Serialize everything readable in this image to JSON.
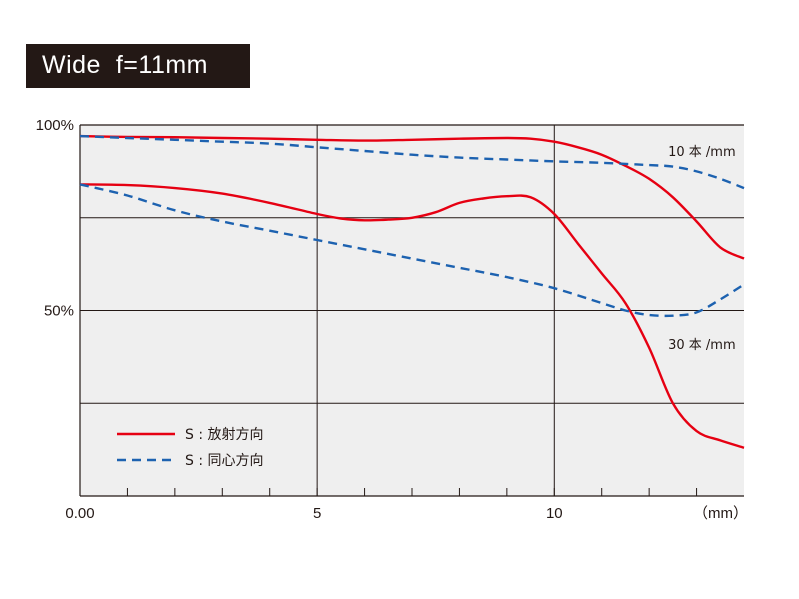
{
  "chart_data": {
    "type": "line",
    "title": "Wide  f=11mm",
    "x_unit_label": "（mm）",
    "xlim": [
      0,
      14
    ],
    "ylim": [
      0,
      100
    ],
    "x_ticks": [
      0,
      5,
      10
    ],
    "x_tick_labels": [
      "0.00",
      "5",
      "10"
    ],
    "y_ticks": [
      50,
      100
    ],
    "y_tick_labels": [
      "50%",
      "100%"
    ],
    "grid": true,
    "legend_position": "bottom-left",
    "legend": [
      {
        "label": "S : 放射方向",
        "style": "solid",
        "color": "#e60012"
      },
      {
        "label": "S : 同心方向",
        "style": "dashed",
        "color": "#1d62b0"
      }
    ],
    "annotations": [
      {
        "text": "10 本 /mm",
        "x": 12.4,
        "y": 93
      },
      {
        "text": "30 本 /mm",
        "x": 12.4,
        "y": 41
      }
    ],
    "series": [
      {
        "style": "solid",
        "frequency": "10 本 /mm",
        "x": [
          0,
          1,
          2,
          3,
          4,
          5,
          6,
          7,
          8,
          9,
          9.5,
          10,
          10.5,
          11,
          11.5,
          12,
          12.5,
          13,
          13.5,
          14
        ],
        "y": [
          97,
          96.8,
          96.7,
          96.5,
          96.3,
          96,
          95.8,
          96,
          96.3,
          96.5,
          96.3,
          95.5,
          94,
          92,
          89,
          85.5,
          80.5,
          74,
          67,
          64
        ]
      },
      {
        "style": "dashed",
        "frequency": "10 本 /mm",
        "x": [
          0,
          1,
          2,
          3,
          4,
          5,
          6,
          7,
          8,
          9,
          10,
          11,
          12,
          12.5,
          13,
          13.5,
          14
        ],
        "y": [
          97,
          96.5,
          96,
          95.5,
          95,
          94,
          93,
          92,
          91.2,
          90.7,
          90.2,
          89.8,
          89.2,
          88.8,
          87.5,
          85.5,
          83
        ]
      },
      {
        "style": "solid",
        "frequency": "30 本 /mm",
        "x": [
          0,
          1,
          2,
          3,
          4,
          5,
          5.5,
          6,
          6.5,
          7,
          7.5,
          8,
          8.5,
          9,
          9.5,
          10,
          10.5,
          11,
          11.5,
          12,
          12.5,
          13,
          13.5,
          14
        ],
        "y": [
          84,
          83.8,
          83,
          81.5,
          79,
          76,
          74.8,
          74.3,
          74.5,
          75,
          76.5,
          79,
          80.2,
          80.8,
          80.5,
          76,
          68,
          60,
          52,
          40,
          25,
          17.5,
          15,
          13
        ]
      },
      {
        "style": "dashed",
        "frequency": "30 本 /mm",
        "x": [
          0,
          1,
          2,
          3,
          4,
          5,
          6,
          7,
          8,
          9,
          10,
          11,
          11.5,
          12,
          12.5,
          13,
          13.5,
          14
        ],
        "y": [
          84,
          81,
          77,
          74,
          71.5,
          69,
          66.5,
          64,
          61.5,
          59,
          56,
          52,
          50,
          48.8,
          48.6,
          49.5,
          53,
          57
        ]
      }
    ]
  }
}
